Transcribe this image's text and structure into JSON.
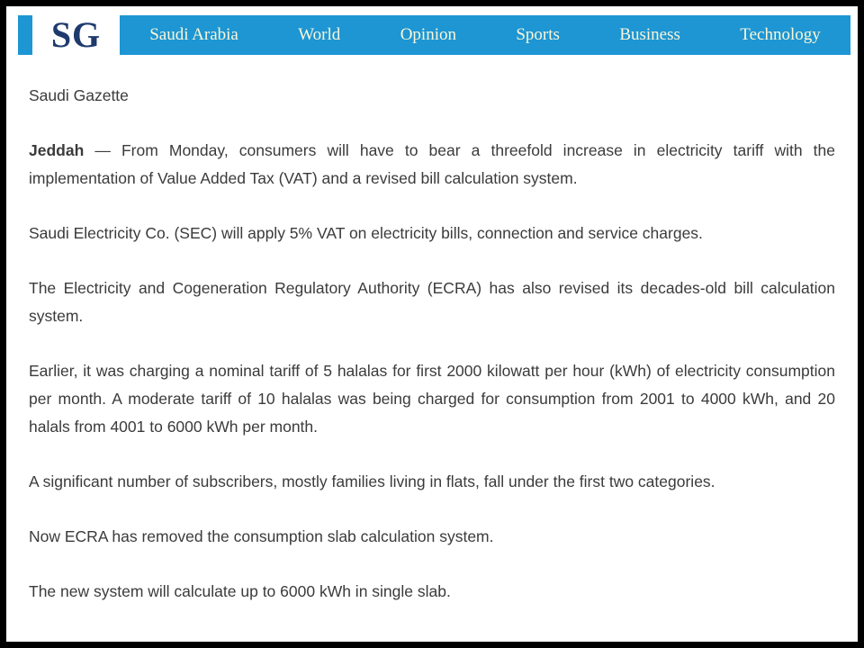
{
  "nav": {
    "logo": "SG",
    "items": [
      "Saudi Arabia",
      "World",
      "Opinion",
      "Sports",
      "Business",
      "Technology"
    ]
  },
  "article": {
    "source": "Saudi Gazette",
    "dateline": "Jeddah",
    "paragraphs": [
      " — From Monday, consumers will have to bear a threefold increase in electricity tariff with the implementation of Value Added Tax (VAT) and a revised bill calculation system.",
      "Saudi Electricity Co. (SEC) will apply 5% VAT on electricity bills, connection and service charges.",
      "The Electricity and Cogeneration Regulatory Authority (ECRA) has also revised its decades-old bill calculation system.",
      "Earlier, it was charging a nominal tariff of 5 halalas for first 2000 kilowatt per hour (kWh) of electricity consumption per month. A moderate tariff of 10 halalas was being charged for consumption from 2001 to 4000 kWh, and 20 halals from 4001 to 6000 kWh per month.",
      "A significant number of subscribers, mostly families living in flats, fall under the first two categories.",
      "Now ECRA has removed the consumption slab calculation system.",
      "The new system will calculate up to 6000 kWh in single slab."
    ]
  },
  "colors": {
    "navbar_blue": "#1d96d3",
    "nav_text": "#fcf6d9",
    "logo_text": "#1e3a6d",
    "body_text": "#3b3b3b",
    "frame_border": "#000000"
  }
}
